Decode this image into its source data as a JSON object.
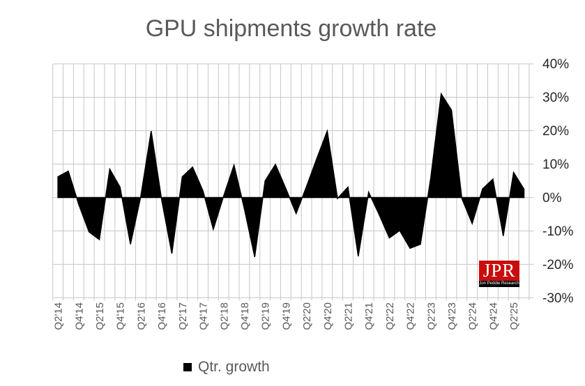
{
  "title": "GPU shipments growth rate",
  "legend": {
    "label": "Qtr. growth",
    "marker_color": "#000000"
  },
  "logo": {
    "acronym": "JPR",
    "subtitle": "Jon Peddie Research",
    "bg_color": "#c90d0d",
    "strip_color": "#000000",
    "text_color": "#ffffff"
  },
  "chart_data": {
    "type": "area",
    "title": "GPU shipments growth rate",
    "series_name": "Qtr. growth",
    "unit": "% quarter-over-quarter",
    "x": [
      "Q2'14",
      "Q3'14",
      "Q4'14",
      "Q1'15",
      "Q2'15",
      "Q3'15",
      "Q4'15",
      "Q1'16",
      "Q2'16",
      "Q3'16",
      "Q4'16",
      "Q1'17",
      "Q2'17",
      "Q3'17",
      "Q4'17",
      "Q1'18",
      "Q2'18",
      "Q3'18",
      "Q4'18",
      "Q1'19",
      "Q2'19",
      "Q3'19",
      "Q4'19",
      "Q1'20",
      "Q2'20",
      "Q3'20",
      "Q4'20",
      "Q1'21",
      "Q2'21",
      "Q3'21",
      "Q4'21",
      "Q1'22",
      "Q2'22",
      "Q3'22",
      "Q4'22",
      "Q1'23",
      "Q2'23",
      "Q3'23",
      "Q4'23",
      "Q1'24",
      "Q2'24",
      "Q3'24",
      "Q4'24",
      "Q1'25",
      "Q2'25",
      "Q3'25"
    ],
    "values": [
      6.2,
      7.9,
      -2,
      -10.3,
      -12.6,
      8.5,
      3.1,
      -14,
      0.3,
      19.9,
      -0.4,
      -16.8,
      6.2,
      9.1,
      2,
      -9.5,
      0.5,
      9.7,
      -3.4,
      -17.8,
      5,
      9.9,
      2.7,
      -4.8,
      3.3,
      11.7,
      19.9,
      -0.3,
      3.1,
      -17.6,
      1.6,
      -5,
      -12.1,
      -9.9,
      -15.2,
      -14,
      5.9,
      31,
      26.2,
      -0.3,
      -7.8,
      2.6,
      5.5,
      -11.5,
      7.5,
      2.5
    ],
    "x_tick_labels": [
      "Q2'14",
      "Q4'14",
      "Q2'15",
      "Q4'15",
      "Q2'16",
      "Q4'16",
      "Q2'17",
      "Q4'17",
      "Q2'18",
      "Q4'18",
      "Q2'19",
      "Q4'19",
      "Q2'20",
      "Q4'20",
      "Q2'21",
      "Q4'21",
      "Q2'22",
      "Q4'22",
      "Q2'23",
      "Q4'23",
      "Q2'24",
      "Q4'24",
      "Q2'25"
    ],
    "x_tick_every": 2,
    "y_ticks": [
      40,
      30,
      20,
      10,
      0,
      -10,
      -20,
      -30
    ],
    "y_tick_suffix": "%",
    "ylim": [
      -30,
      40
    ],
    "grid": true,
    "legend_position": "bottom",
    "fill_color": "#000000",
    "grid_color": "#c6c6c6",
    "x_label_color": "#595959",
    "y_label_color": "#262626"
  }
}
